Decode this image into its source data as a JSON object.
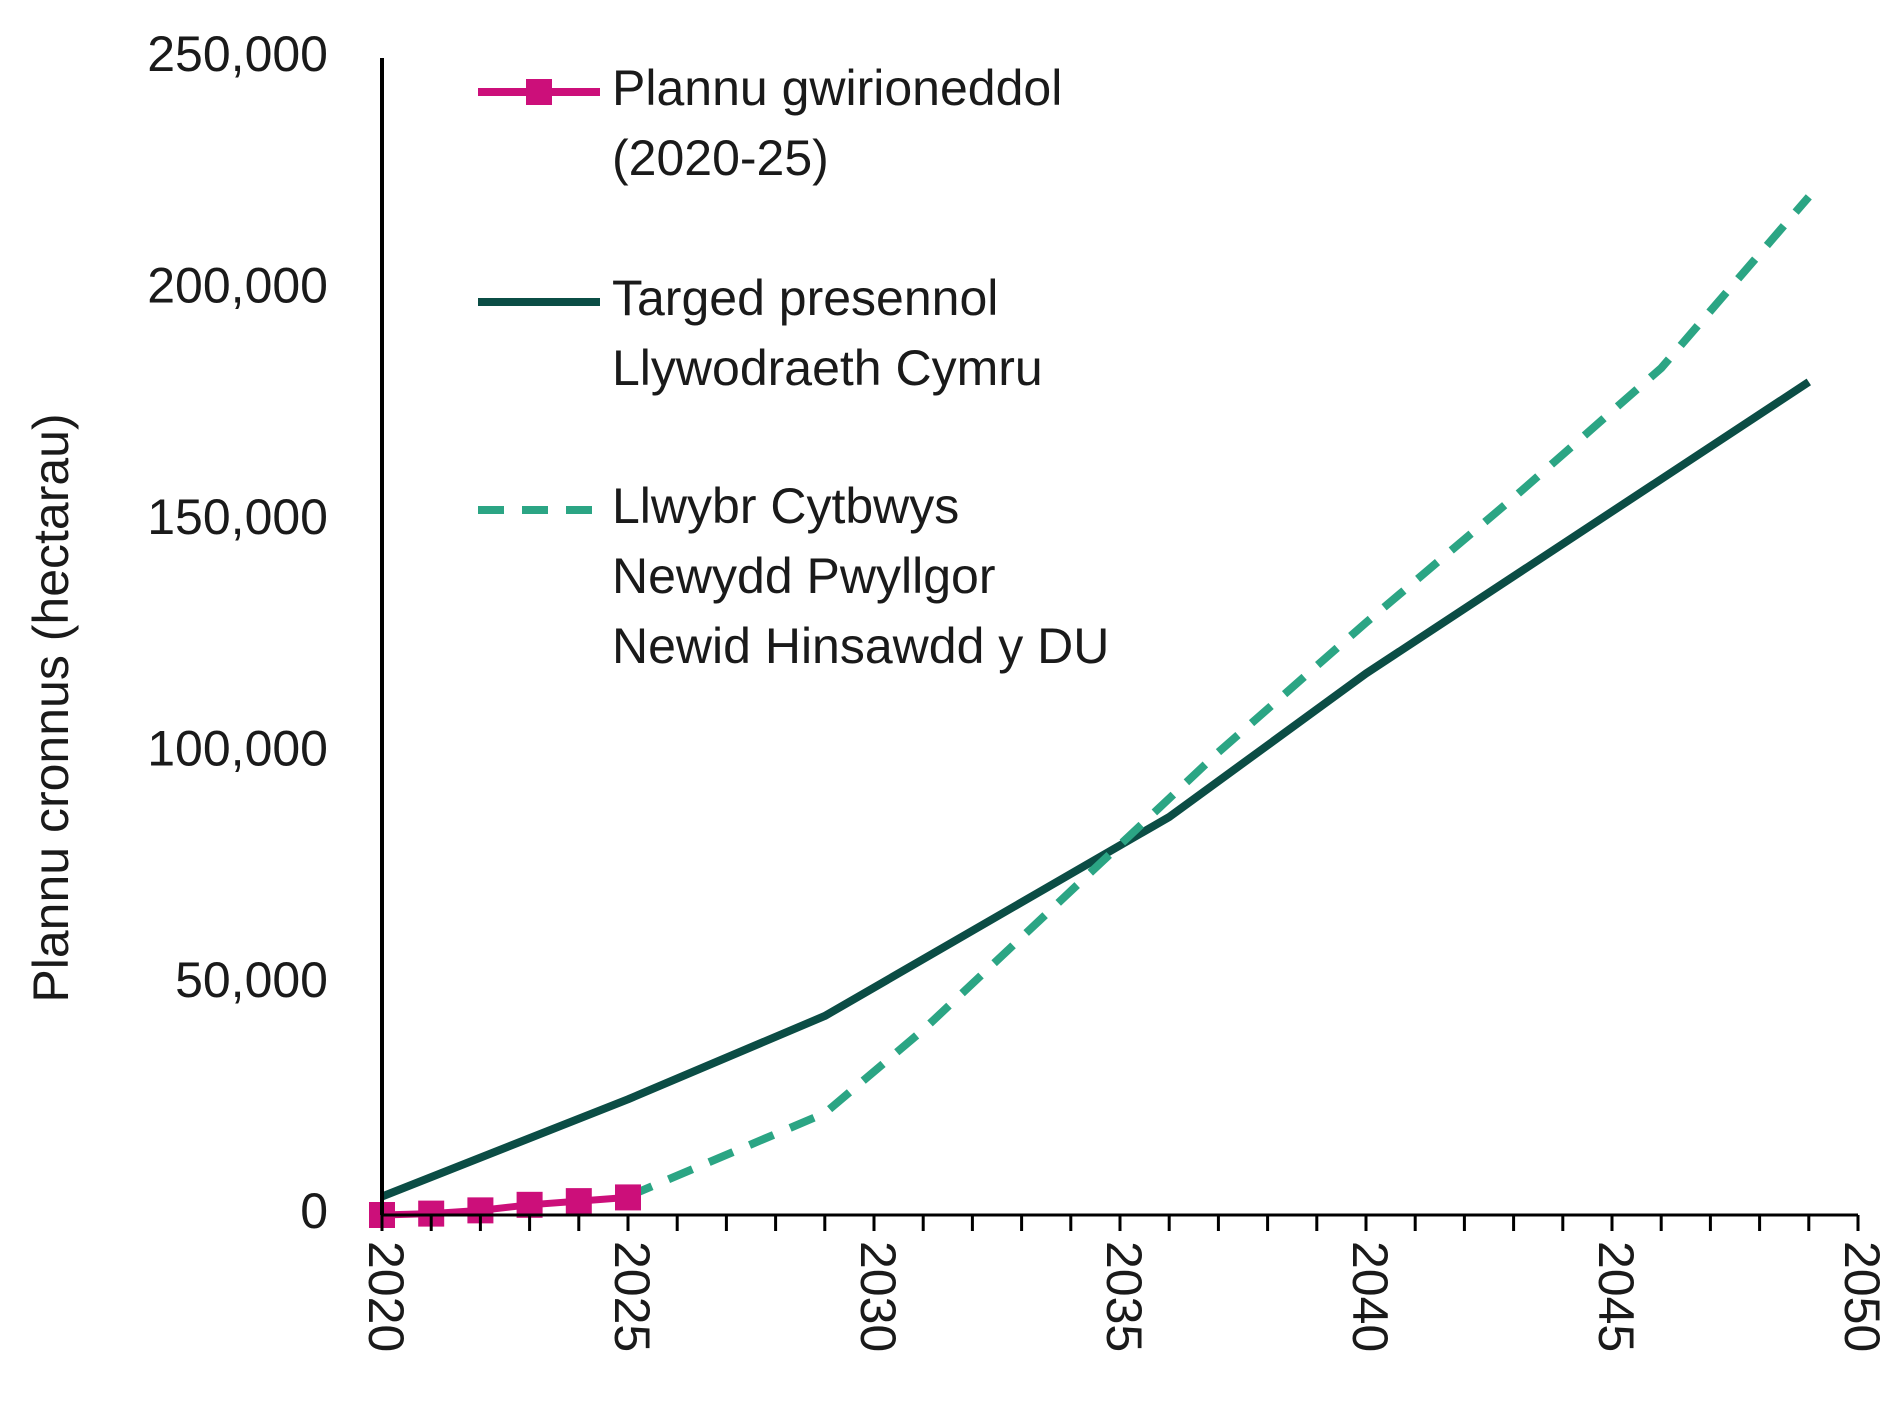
{
  "chart_data": {
    "type": "line",
    "title": "",
    "xlabel": "",
    "ylabel": "Plannu cronnus (hectarau)",
    "xlim": [
      2020,
      2050
    ],
    "ylim": [
      0,
      250000
    ],
    "x_ticks": [
      "2020",
      "2025",
      "2030",
      "2035",
      "2040",
      "2045",
      "2050"
    ],
    "y_ticks": [
      "0",
      "50,000",
      "100,000",
      "150,000",
      "200,000",
      "250,000"
    ],
    "grid": false,
    "legend_position": "top-left",
    "series": [
      {
        "name": "Plannu gwirioneddol (2020-25)",
        "name_lines": [
          "Plannu gwirioneddol",
          "(2020-25)"
        ],
        "color": "#cc0f7a",
        "style": "solid-markers",
        "x": [
          2020,
          2021,
          2022,
          2023,
          2024,
          2025
        ],
        "y": [
          0,
          300,
          1000,
          2200,
          3000,
          3800
        ]
      },
      {
        "name": "Targed presennol Llywodraeth Cymru",
        "name_lines": [
          "Targed presennol",
          "Llywodraeth Cymru"
        ],
        "color": "#0b4d45",
        "style": "solid",
        "x": [
          2020,
          2025,
          2029,
          2036,
          2040,
          2049
        ],
        "y": [
          4000,
          25000,
          43000,
          86000,
          117000,
          180000
        ]
      },
      {
        "name": "Llwybr Cytbwys Newydd Pwyllgor Newid Hinsawdd y DU",
        "name_lines": [
          "Llwybr Cytbwys",
          "Newydd Pwyllgor",
          "Newid Hinsawdd y DU"
        ],
        "color": "#2ba584",
        "style": "dashed",
        "x": [
          2025,
          2029,
          2031,
          2033,
          2035,
          2037,
          2040,
          2043,
          2046,
          2049
        ],
        "y": [
          4000,
          22000,
          40000,
          60000,
          80000,
          100000,
          128000,
          155000,
          183000,
          220000
        ]
      }
    ]
  }
}
